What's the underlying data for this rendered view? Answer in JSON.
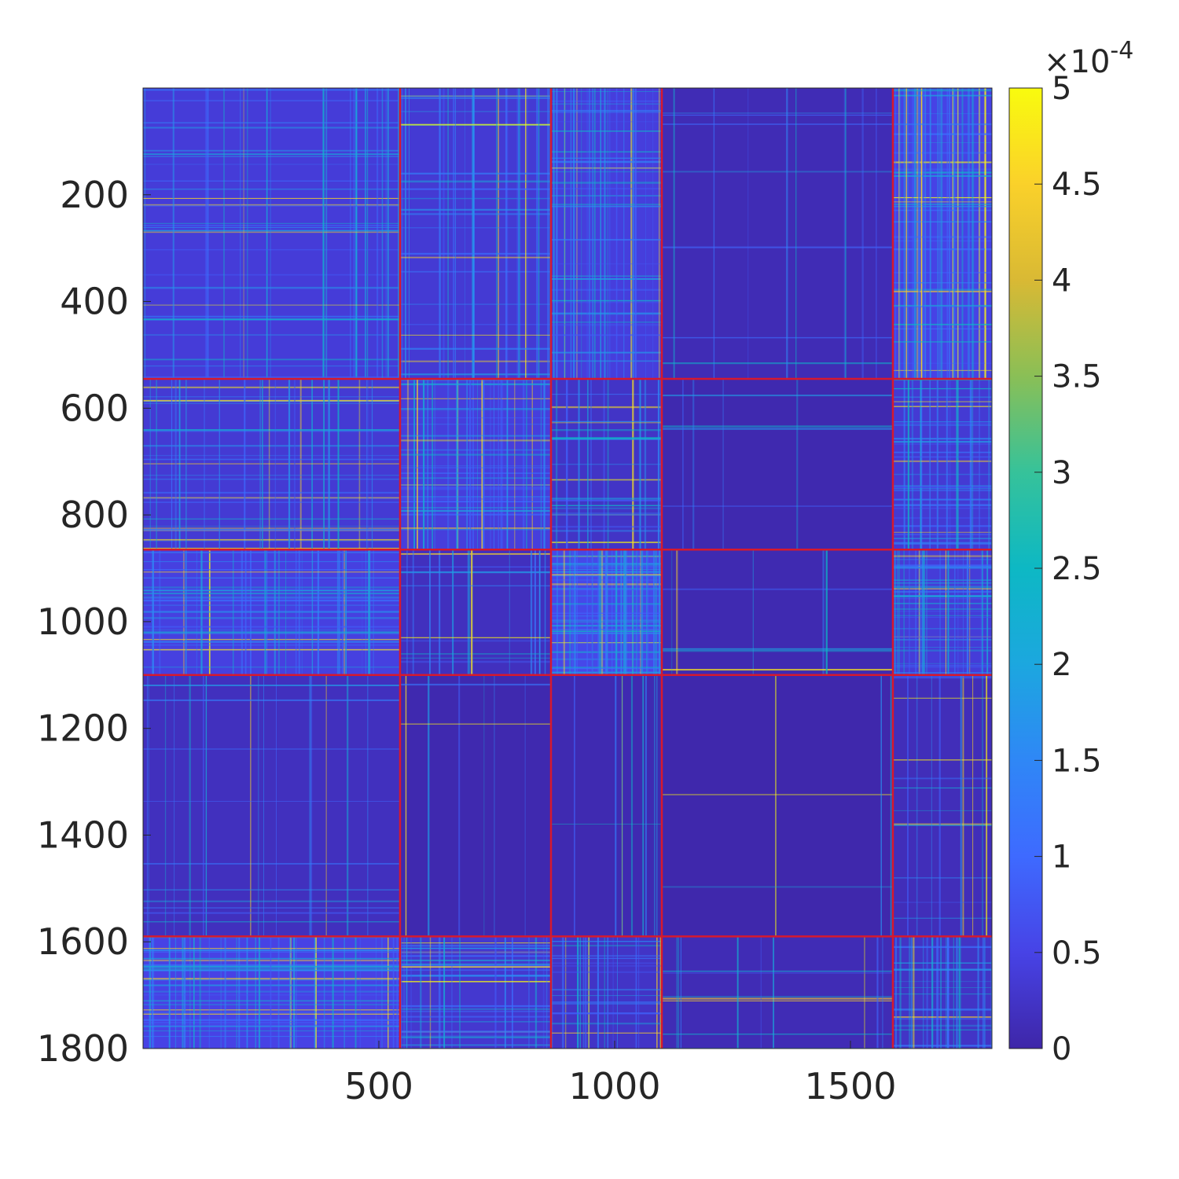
{
  "chart_data": {
    "type": "heatmap",
    "title": "",
    "xlabel": "",
    "ylabel": "",
    "matrix_size": 1800,
    "xlim": [
      1,
      1800
    ],
    "ylim": [
      1,
      1800
    ],
    "y_reversed": true,
    "x_ticks": [
      500,
      1000,
      1500
    ],
    "x_tick_labels": [
      "500",
      "1000",
      "1500"
    ],
    "y_ticks": [
      200,
      400,
      600,
      800,
      1000,
      1200,
      1400,
      1600,
      1800
    ],
    "y_tick_labels": [
      "200",
      "400",
      "600",
      "800",
      "1000",
      "1200",
      "1400",
      "1600",
      "1800"
    ],
    "colormap": "parula",
    "color_limits": [
      0,
      0.0005
    ],
    "colorbar": {
      "ticks": [
        0,
        0.5,
        1,
        1.5,
        2,
        2.5,
        3,
        3.5,
        4,
        4.5,
        5
      ],
      "tick_labels": [
        "0",
        "0.5",
        "1",
        "1.5",
        "2",
        "2.5",
        "3",
        "3.5",
        "4",
        "4.5",
        "5"
      ],
      "multiplier_base": "×10",
      "multiplier_exponent": "-4"
    },
    "block_boundaries": [
      545,
      865,
      1100,
      1590
    ],
    "boundary_color": "#d7192d",
    "block_mean_levels": [
      [
        0.22,
        0.2,
        0.24,
        0.06,
        0.28
      ],
      [
        0.2,
        0.24,
        0.14,
        0.03,
        0.2
      ],
      [
        0.26,
        0.1,
        0.32,
        0.04,
        0.22
      ],
      [
        0.1,
        0.03,
        0.04,
        0.02,
        0.08
      ],
      [
        0.28,
        0.18,
        0.14,
        0.06,
        0.14
      ]
    ]
  },
  "colors": {
    "parula_low": "#3e26a8",
    "parula_high": "#f9fb0e",
    "axis": "#262626"
  }
}
